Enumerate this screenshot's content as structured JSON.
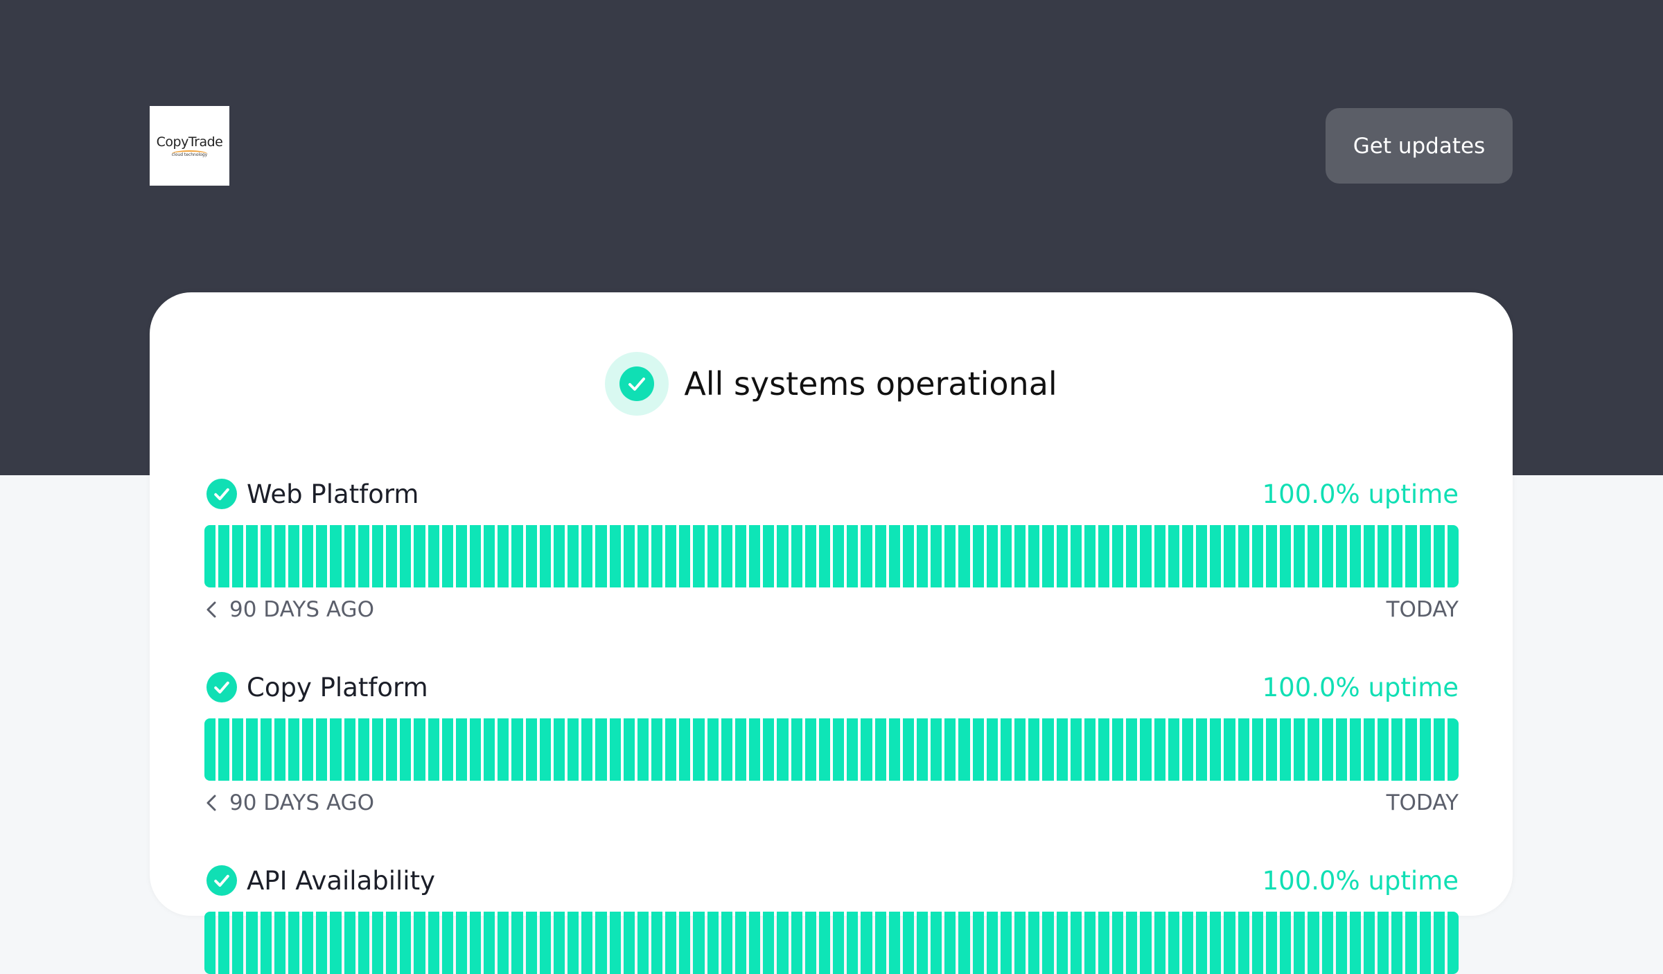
{
  "header": {
    "logo": "CopyTrade",
    "logo_sub": "cloud technology",
    "button": "Get updates"
  },
  "status": {
    "title": "All systems operational"
  },
  "components": [
    {
      "name": "Web Platform",
      "uptime": "100.0% uptime",
      "start": "90 DAYS AGO",
      "end": "TODAY"
    },
    {
      "name": "Copy Platform",
      "uptime": "100.0% uptime",
      "start": "90 DAYS AGO",
      "end": "TODAY"
    },
    {
      "name": "API Availability",
      "uptime": "100.0% uptime"
    }
  ]
}
